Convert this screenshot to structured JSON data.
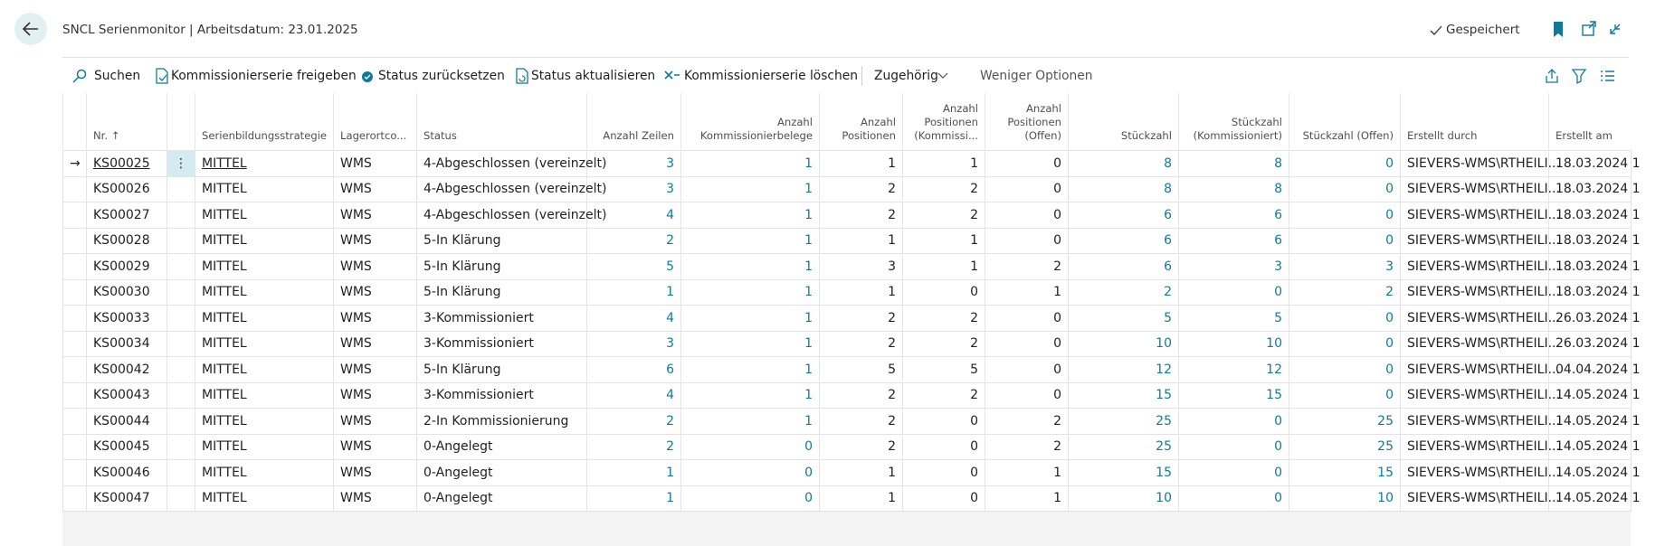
{
  "header": {
    "title": "SNCL Serienmonitor | Arbeitsdatum: 23.01.2025",
    "status": "Gespeichert"
  },
  "toolbar": {
    "actions": [
      "Suchen",
      "Kommissionierserie freigeben",
      "Status zurücksetzen",
      "Status aktualisieren",
      "Kommissionierserie löschen"
    ],
    "related": "Zugehörig",
    "less": "Weniger Optionen"
  },
  "table": {
    "columns": [
      "Nr.",
      "Serienbildungsstrategie",
      "Lagerortco...",
      "Status",
      "Anzahl Zeilen",
      "Anzahl Kommissionierbelege",
      "Anzahl Positionen",
      "Anzahl Positionen (Kommissi...",
      "Anzahl Positionen (Offen)",
      "Stückzahl",
      "Stückzahl (Kommissioniert)",
      "Stückzahl (Offen)",
      "Erstellt durch",
      "Erstellt am"
    ],
    "rows": [
      [
        "KS00025",
        "MITTEL",
        "WMS",
        "4-Abgeschlossen (vereinzelt)",
        3,
        1,
        1,
        1,
        0,
        8,
        8,
        0,
        "SIEVERS-WMS\\RTHEILI...",
        "18.03.2024 1"
      ],
      [
        "KS00026",
        "MITTEL",
        "WMS",
        "4-Abgeschlossen (vereinzelt)",
        3,
        1,
        2,
        2,
        0,
        8,
        8,
        0,
        "SIEVERS-WMS\\RTHEILI...",
        "18.03.2024 1"
      ],
      [
        "KS00027",
        "MITTEL",
        "WMS",
        "4-Abgeschlossen (vereinzelt)",
        4,
        1,
        2,
        2,
        0,
        6,
        6,
        0,
        "SIEVERS-WMS\\RTHEILI...",
        "18.03.2024 1"
      ],
      [
        "KS00028",
        "MITTEL",
        "WMS",
        "5-In Klärung",
        2,
        1,
        1,
        1,
        0,
        6,
        6,
        0,
        "SIEVERS-WMS\\RTHEILI...",
        "18.03.2024 1"
      ],
      [
        "KS00029",
        "MITTEL",
        "WMS",
        "5-In Klärung",
        5,
        1,
        3,
        1,
        2,
        6,
        3,
        3,
        "SIEVERS-WMS\\RTHEILI...",
        "18.03.2024 1"
      ],
      [
        "KS00030",
        "MITTEL",
        "WMS",
        "5-In Klärung",
        1,
        1,
        1,
        0,
        1,
        2,
        0,
        2,
        "SIEVERS-WMS\\RTHEILI...",
        "18.03.2024 1"
      ],
      [
        "KS00033",
        "MITTEL",
        "WMS",
        "3-Kommissioniert",
        4,
        1,
        2,
        2,
        0,
        5,
        5,
        0,
        "SIEVERS-WMS\\RTHEILI...",
        "26.03.2024 1"
      ],
      [
        "KS00034",
        "MITTEL",
        "WMS",
        "3-Kommissioniert",
        3,
        1,
        2,
        2,
        0,
        10,
        10,
        0,
        "SIEVERS-WMS\\RTHEILI...",
        "26.03.2024 1"
      ],
      [
        "KS00042",
        "MITTEL",
        "WMS",
        "5-In Klärung",
        6,
        1,
        5,
        5,
        0,
        12,
        12,
        0,
        "SIEVERS-WMS\\RTHEILI...",
        "04.04.2024 1"
      ],
      [
        "KS00043",
        "MITTEL",
        "WMS",
        "3-Kommissioniert",
        4,
        1,
        2,
        2,
        0,
        15,
        15,
        0,
        "SIEVERS-WMS\\RTHEILI...",
        "14.05.2024 1"
      ],
      [
        "KS00044",
        "MITTEL",
        "WMS",
        "2-In Kommissionierung",
        2,
        1,
        2,
        0,
        2,
        25,
        0,
        25,
        "SIEVERS-WMS\\RTHEILI...",
        "14.05.2024 1"
      ],
      [
        "KS00045",
        "MITTEL",
        "WMS",
        "0-Angelegt",
        2,
        0,
        2,
        0,
        2,
        25,
        0,
        25,
        "SIEVERS-WMS\\RTHEILI...",
        "14.05.2024 1"
      ],
      [
        "KS00046",
        "MITTEL",
        "WMS",
        "0-Angelegt",
        1,
        0,
        1,
        0,
        1,
        15,
        0,
        15,
        "SIEVERS-WMS\\RTHEILI...",
        "14.05.2024 1"
      ],
      [
        "KS00047",
        "MITTEL",
        "WMS",
        "0-Angelegt",
        1,
        0,
        1,
        0,
        1,
        10,
        0,
        10,
        "SIEVERS-WMS\\RTHEILI...",
        "14.05.2024 1"
      ]
    ]
  }
}
